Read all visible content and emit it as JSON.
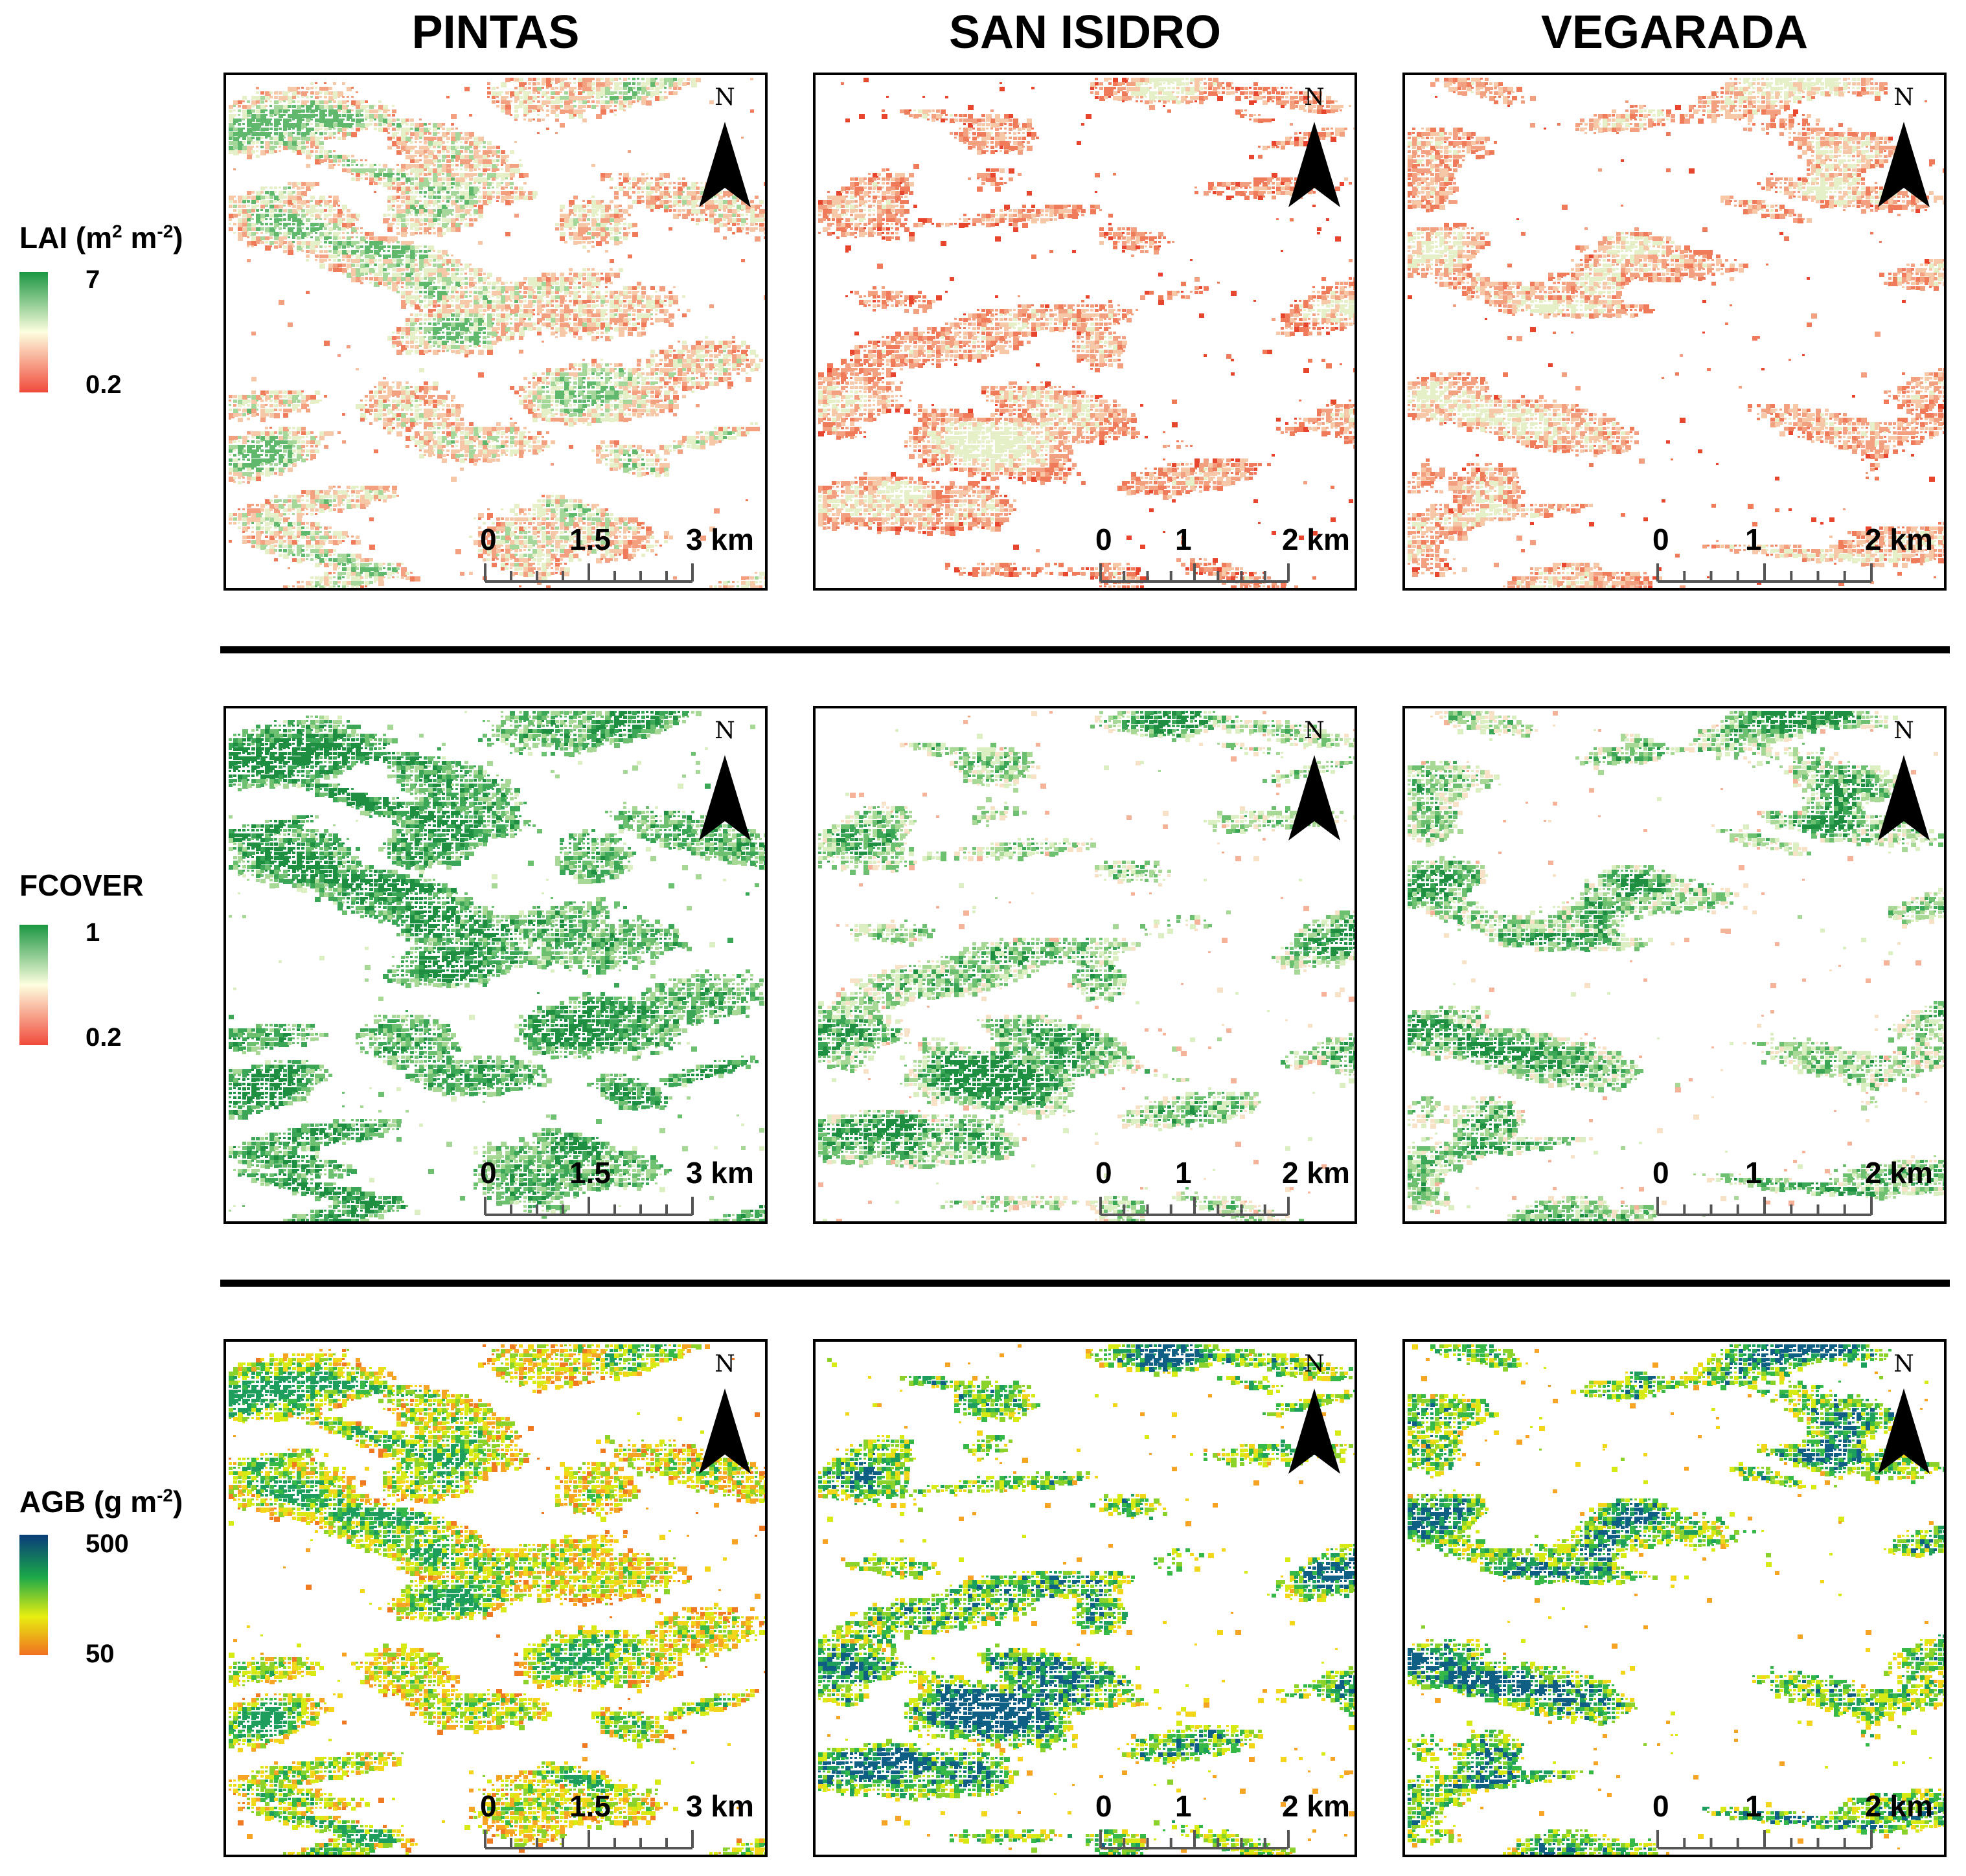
{
  "columns": [
    "PINTAS",
    "SAN ISIDRO",
    "VEGARADA"
  ],
  "rows": [
    {
      "id": "lai",
      "legend_title": "LAI (m",
      "legend_sup1": "2",
      "legend_mid": " m",
      "legend_sup2": "-2",
      "legend_end": ")",
      "max_label": "7",
      "min_label": "0.2",
      "colors": [
        "#1a9641",
        "#fefee0",
        "#f04a3a"
      ]
    },
    {
      "id": "fcover",
      "legend_title": "FCOVER",
      "max_label": "1",
      "min_label": "0.2",
      "colors": [
        "#1a9641",
        "#fefee0",
        "#f04a3a"
      ]
    },
    {
      "id": "agb",
      "legend_title": "AGB (g m",
      "legend_sup1": "-2",
      "legend_end": ")",
      "max_label": "500",
      "min_label": "50",
      "colors": [
        "#0a3b7a",
        "#1aa84a",
        "#e8ee10",
        "#f07020"
      ]
    }
  ],
  "north_arrow": {
    "letter": "N"
  },
  "scale_bars": [
    {
      "site": "PINTAS",
      "labels": [
        "0",
        "1.5",
        "3 km"
      ]
    },
    {
      "site": "SAN ISIDRO",
      "labels": [
        "0",
        "1",
        "2 km"
      ]
    },
    {
      "site": "VEGARADA",
      "labels": [
        "0",
        "1",
        "2 km"
      ]
    }
  ]
}
